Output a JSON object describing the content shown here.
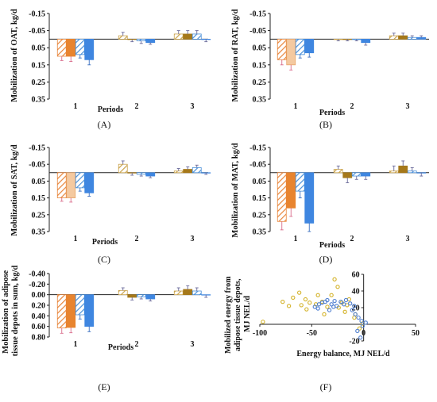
{
  "colors": {
    "orange_hatch": "#e8853a",
    "orange_light": "#f4c9a0",
    "blue_hatch": "#4a90d9",
    "blue_solid": "#3f86e0",
    "tan_hatch": "#c9a24a",
    "tan_solid": "#b8891c",
    "olive_solid": "#a5781a",
    "scatter_yellow": "#d4b32a",
    "scatter_blue": "#4f7fd0",
    "axis": "#222222"
  },
  "chart_data": [
    {
      "panel": "A",
      "type": "bar",
      "panel_label": "(A)",
      "ylabel": "Mobilization of OAT, kg/d",
      "xlabel": "Periods",
      "categories": [
        "1",
        "2",
        "3"
      ],
      "ylim": [
        -0.15,
        0.35
      ],
      "y_inverted": true,
      "yticks": [
        "-0.15",
        "-0.05",
        "0.05",
        "0.15",
        "0.25",
        "0.35"
      ],
      "series": [
        {
          "values": [
            0.1,
            -0.02,
            -0.03
          ],
          "errors": [
            0.025,
            0.02,
            0.02
          ]
        },
        {
          "values": [
            0.1,
            0.0,
            -0.03
          ],
          "errors": [
            0.03,
            0.015,
            0.02
          ]
        },
        {
          "values": [
            0.09,
            0.01,
            -0.03
          ],
          "errors": [
            0.02,
            0.015,
            0.02
          ]
        },
        {
          "values": [
            0.12,
            0.02,
            0.0
          ],
          "errors": [
            0.03,
            0.01,
            0.015
          ]
        }
      ]
    },
    {
      "panel": "B",
      "type": "bar",
      "panel_label": "(B)",
      "ylabel": "Mobilization of RAT, kg/d",
      "xlabel": "Periods",
      "categories": [
        "1",
        "2",
        "3"
      ],
      "ylim": [
        -0.15,
        0.35
      ],
      "y_inverted": true,
      "yticks": [
        "-0.15",
        "-0.05",
        "0.05",
        "0.15",
        "0.25",
        "0.35"
      ],
      "series": [
        {
          "values": [
            0.12,
            0.0,
            -0.02
          ],
          "errors": [
            0.03,
            0.01,
            0.015
          ]
        },
        {
          "values": [
            0.15,
            0.0,
            -0.02
          ],
          "errors": [
            0.03,
            0.01,
            0.015
          ]
        },
        {
          "values": [
            0.09,
            0.0,
            -0.01
          ],
          "errors": [
            0.02,
            0.01,
            0.01
          ]
        },
        {
          "values": [
            0.08,
            0.02,
            -0.01
          ],
          "errors": [
            0.025,
            0.015,
            0.01
          ]
        }
      ]
    },
    {
      "panel": "C",
      "type": "bar",
      "panel_label": "(C)",
      "ylabel": "Mobilization of SAT, kg/d",
      "xlabel": "Periods",
      "categories": [
        "1",
        "2",
        "3"
      ],
      "ylim": [
        -0.15,
        0.35
      ],
      "y_inverted": true,
      "yticks": [
        "-0.15",
        "-0.05",
        "0.05",
        "0.15",
        "0.25",
        "0.35"
      ],
      "series": [
        {
          "values": [
            0.15,
            -0.05,
            -0.01
          ],
          "errors": [
            0.02,
            0.02,
            0.015
          ]
        },
        {
          "values": [
            0.15,
            0.0,
            -0.02
          ],
          "errors": [
            0.025,
            0.015,
            0.015
          ]
        },
        {
          "values": [
            0.09,
            0.01,
            -0.03
          ],
          "errors": [
            0.02,
            0.01,
            0.015
          ]
        },
        {
          "values": [
            0.12,
            0.02,
            0.0
          ],
          "errors": [
            0.02,
            0.01,
            0.01
          ]
        }
      ]
    },
    {
      "panel": "D",
      "type": "bar",
      "panel_label": "(D)",
      "ylabel": "Mobilization of MAT, kg/d",
      "xlabel": "Periods",
      "categories": [
        "1",
        "2",
        "3"
      ],
      "ylim": [
        -0.15,
        0.35
      ],
      "y_inverted": true,
      "yticks": [
        "-0.15",
        "-0.05",
        "0.05",
        "0.15",
        "0.25",
        "0.35"
      ],
      "series": [
        {
          "values": [
            0.29,
            -0.02,
            -0.01
          ],
          "errors": [
            0.05,
            0.02,
            0.03
          ]
        },
        {
          "values": [
            0.21,
            0.03,
            -0.04
          ],
          "errors": [
            0.05,
            0.03,
            0.03
          ]
        },
        {
          "values": [
            0.11,
            0.02,
            -0.01
          ],
          "errors": [
            0.04,
            0.02,
            0.02
          ]
        },
        {
          "values": [
            0.3,
            0.02,
            0.0
          ],
          "errors": [
            0.05,
            0.02,
            0.02
          ]
        }
      ]
    },
    {
      "panel": "E",
      "type": "bar",
      "panel_label": "(E)",
      "ylabel": "Mobilization of adipose tissue depots in sum, kg/d",
      "xlabel": "Periods",
      "categories": [
        "1",
        "2",
        "3"
      ],
      "ylim": [
        -0.4,
        0.8
      ],
      "y_inverted": true,
      "yticks": [
        "-0.40",
        "-0.20",
        "0.00",
        "0.20",
        "0.40",
        "0.60",
        "0.80"
      ],
      "series": [
        {
          "values": [
            0.63,
            -0.08,
            -0.07
          ],
          "errors": [
            0.1,
            0.05,
            0.06
          ]
        },
        {
          "values": [
            0.62,
            0.05,
            -0.1
          ],
          "errors": [
            0.1,
            0.05,
            0.07
          ]
        },
        {
          "values": [
            0.38,
            0.04,
            -0.07
          ],
          "errors": [
            0.08,
            0.04,
            0.06
          ]
        },
        {
          "values": [
            0.6,
            0.08,
            0.0
          ],
          "errors": [
            0.1,
            0.04,
            0.05
          ]
        }
      ]
    },
    {
      "panel": "F",
      "type": "scatter",
      "panel_label": "(F)",
      "xlabel": "Energy balance, MJ NEL/d",
      "ylabel": "Mobilized energy from adipose tissue depots, MJ NEL/d",
      "xlim": [
        -100,
        50
      ],
      "ylim": [
        -20,
        60
      ],
      "xticks": [
        "-100",
        "-50",
        "0",
        "50"
      ],
      "yticks": [
        "-20",
        "20",
        "40",
        "60"
      ],
      "series": [
        {
          "color_key": "scatter_yellow",
          "points": [
            [
              -97,
              3
            ],
            [
              -78,
              27
            ],
            [
              -72,
              22
            ],
            [
              -68,
              32
            ],
            [
              -62,
              38
            ],
            [
              -56,
              30
            ],
            [
              -52,
              26
            ],
            [
              -46,
              24
            ],
            [
              -40,
              27
            ],
            [
              -35,
              21
            ],
            [
              -31,
              35
            ],
            [
              -28,
              54
            ],
            [
              -25,
              45
            ],
            [
              -21,
              26
            ],
            [
              -18,
              15
            ],
            [
              -14,
              30
            ],
            [
              -9,
              8
            ],
            [
              -4,
              -5
            ],
            [
              -1,
              1
            ],
            [
              -38,
              12
            ],
            [
              -55,
              18
            ],
            [
              -44,
              35
            ],
            [
              -60,
              23
            ],
            [
              -24,
              20
            ],
            [
              -16,
              23
            ],
            [
              -8,
              12
            ]
          ]
        },
        {
          "color_key": "scatter_blue",
          "points": [
            [
              -47,
              21
            ],
            [
              -43,
              24
            ],
            [
              -40,
              26
            ],
            [
              -37,
              27
            ],
            [
              -33,
              17
            ],
            [
              -31,
              24
            ],
            [
              -28,
              28
            ],
            [
              -26,
              22
            ],
            [
              -22,
              27
            ],
            [
              -19,
              24
            ],
            [
              -17,
              29
            ],
            [
              -13,
              25
            ],
            [
              -11,
              17
            ],
            [
              -8,
              12
            ],
            [
              -5,
              8
            ],
            [
              -2,
              4
            ],
            [
              -1,
              -2
            ],
            [
              2,
              2
            ],
            [
              -6,
              -8
            ],
            [
              -3,
              -16
            ],
            [
              -44,
              19
            ],
            [
              -29,
              21
            ],
            [
              -35,
              29
            ],
            [
              -9,
              22
            ]
          ]
        }
      ]
    }
  ]
}
